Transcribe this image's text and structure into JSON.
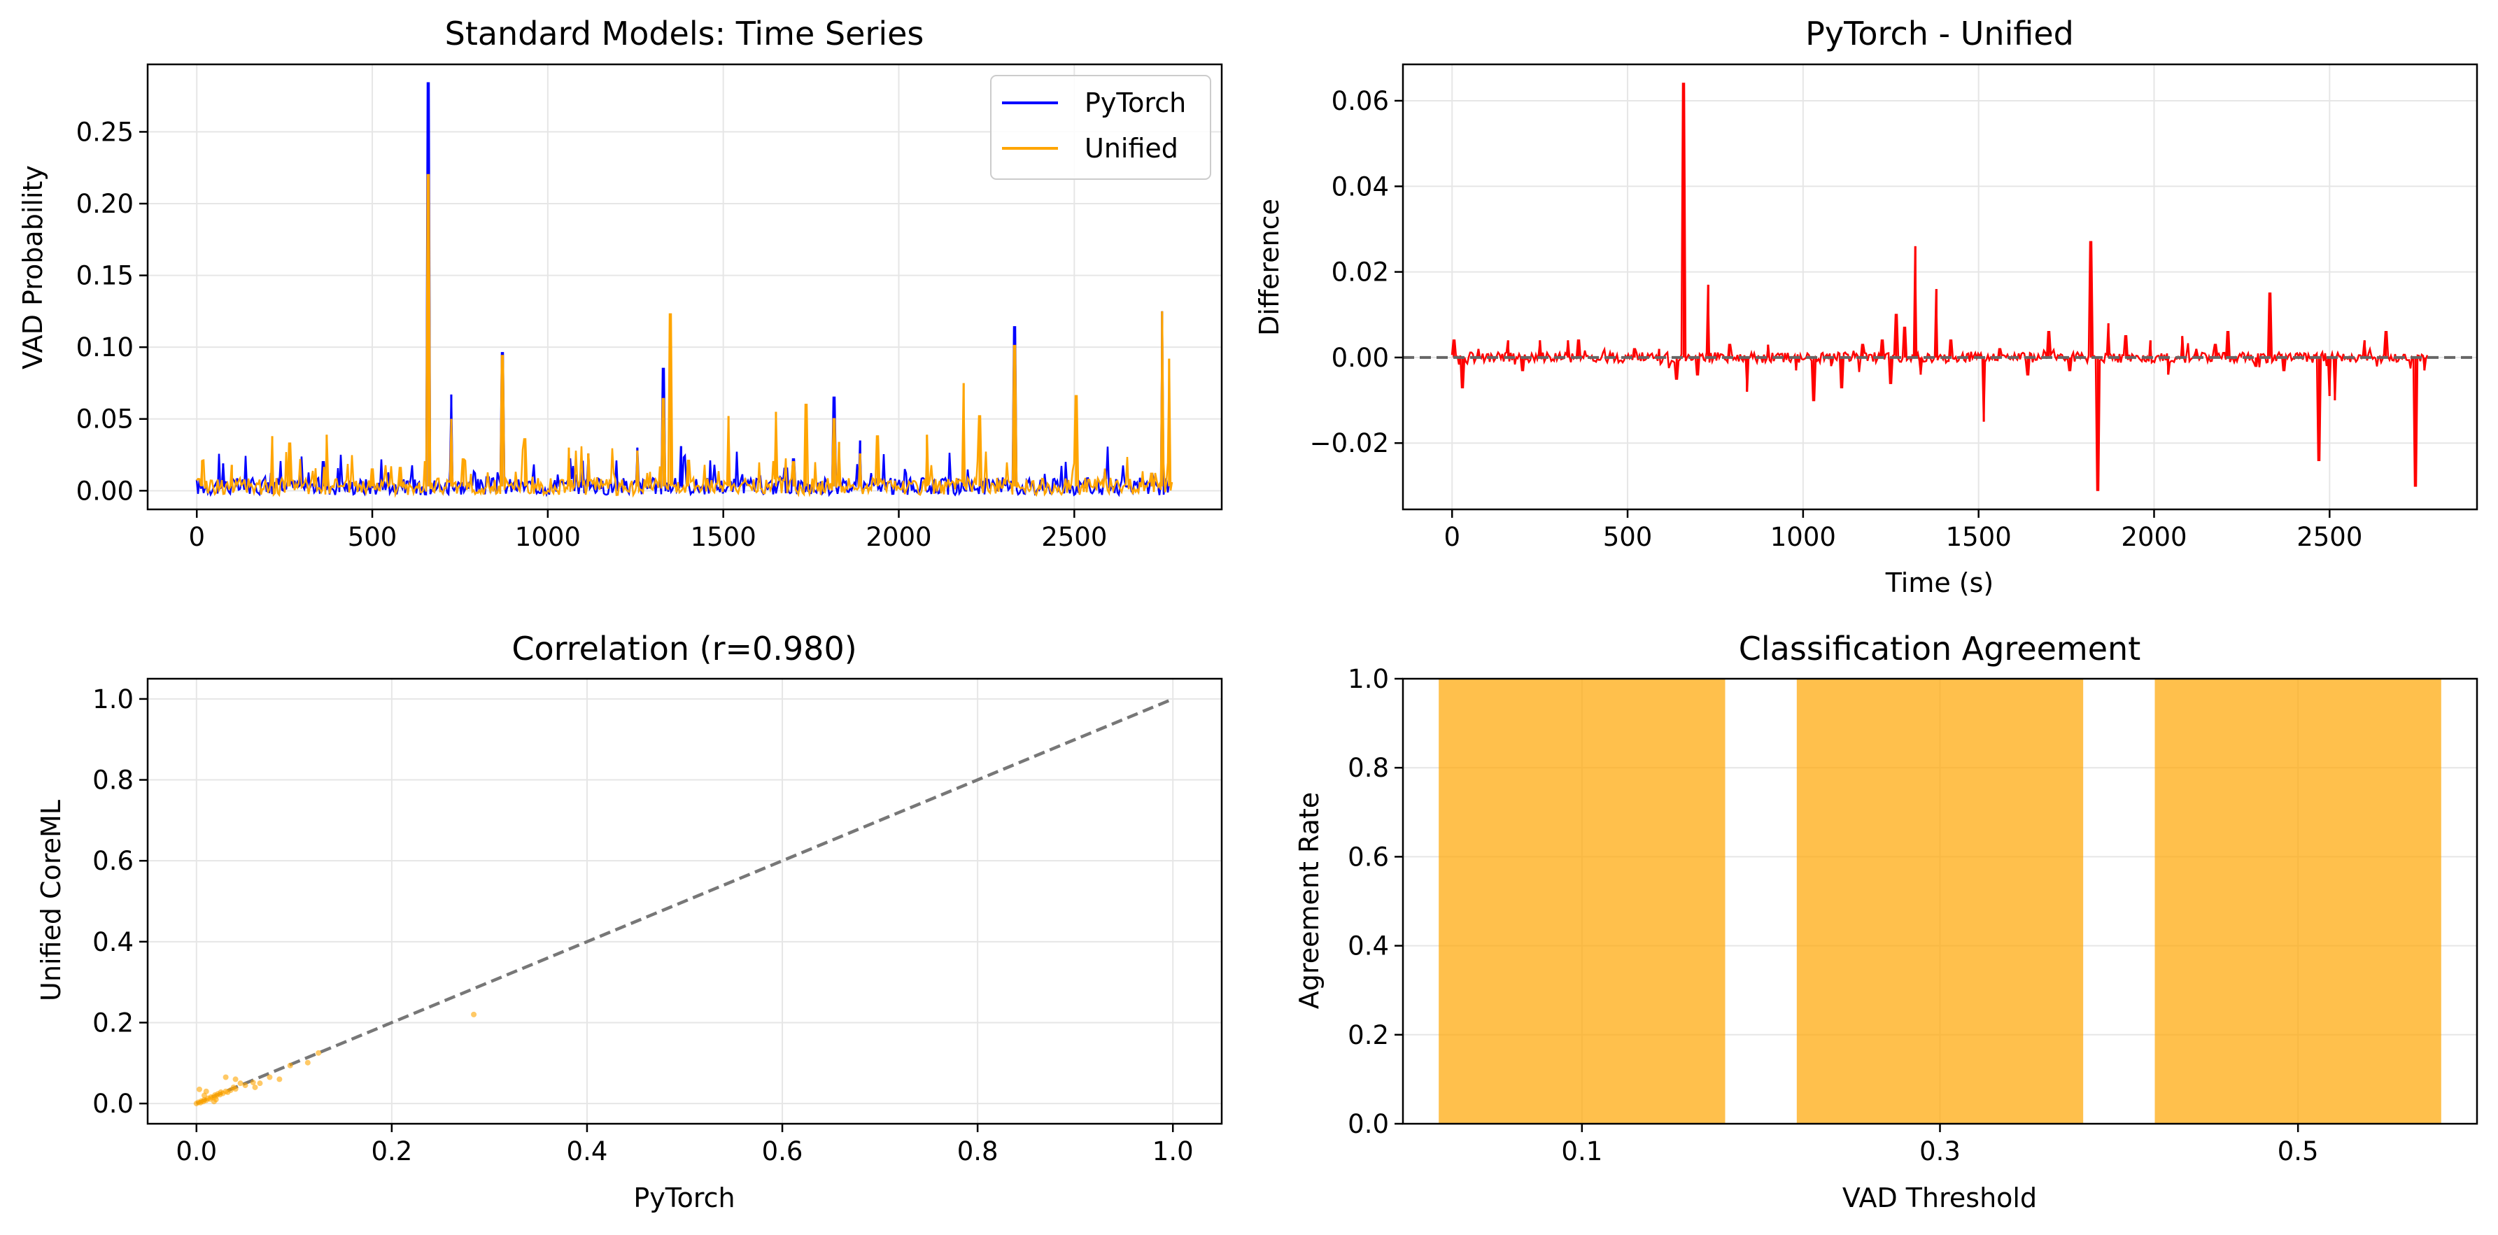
{
  "chart_data": [
    {
      "type": "line",
      "title": "Standard Models: Time Series",
      "xlabel": "",
      "ylabel": "VAD Probability",
      "xlim": [
        -140,
        2920
      ],
      "ylim": [
        -0.013,
        0.297
      ],
      "xticks": [
        0,
        500,
        1000,
        1500,
        2000,
        2500
      ],
      "yticks": [
        0.0,
        0.05,
        0.1,
        0.15,
        0.2,
        0.25
      ],
      "ytick_labels": [
        "0.00",
        "0.05",
        "0.10",
        "0.15",
        "0.20",
        "0.25"
      ],
      "grid": true,
      "legend": "top-right",
      "series": [
        {
          "name": "PyTorch",
          "color": "#0000ff",
          "spikes": [
            [
              75,
              0.019
            ],
            [
              360,
              0.02
            ],
            [
              660,
              0.284
            ],
            [
              725,
              0.067
            ],
            [
              870,
              0.096
            ],
            [
              1115,
              0.026
            ],
            [
              1255,
              0.03
            ],
            [
              1330,
              0.085
            ],
            [
              1380,
              0.031
            ],
            [
              1700,
              0.022
            ],
            [
              1815,
              0.065
            ],
            [
              1890,
              0.035
            ],
            [
              2330,
              0.114
            ],
            [
              2720,
              0.012
            ],
            [
              2750,
              0.125
            ]
          ]
        },
        {
          "name": "Unified",
          "color": "#ffa500",
          "spikes": [
            [
              15,
              0.021
            ],
            [
              100,
              0.018
            ],
            [
              215,
              0.038
            ],
            [
              265,
              0.033
            ],
            [
              370,
              0.039
            ],
            [
              500,
              0.015
            ],
            [
              580,
              0.016
            ],
            [
              660,
              0.22
            ],
            [
              725,
              0.05
            ],
            [
              760,
              0.022
            ],
            [
              870,
              0.094
            ],
            [
              935,
              0.036
            ],
            [
              1060,
              0.03
            ],
            [
              1115,
              0.026
            ],
            [
              1255,
              0.028
            ],
            [
              1330,
              0.064
            ],
            [
              1350,
              0.123
            ],
            [
              1400,
              0.021
            ],
            [
              1515,
              0.052
            ],
            [
              1650,
              0.055
            ],
            [
              1700,
              0.02
            ],
            [
              1735,
              0.06
            ],
            [
              1815,
              0.05
            ],
            [
              1830,
              0.034
            ],
            [
              1890,
              0.026
            ],
            [
              1940,
              0.038
            ],
            [
              2080,
              0.039
            ],
            [
              2185,
              0.075
            ],
            [
              2230,
              0.052
            ],
            [
              2330,
              0.101
            ],
            [
              2505,
              0.066
            ],
            [
              2720,
              0.012
            ],
            [
              2750,
              0.125
            ],
            [
              2770,
              0.092
            ]
          ]
        }
      ]
    },
    {
      "type": "line",
      "title": "PyTorch - Unified",
      "xlabel": "Time (s)",
      "ylabel": "Difference",
      "xlim": [
        -140,
        2920
      ],
      "ylim": [
        -0.0355,
        0.0685
      ],
      "xticks": [
        0,
        500,
        1000,
        1500,
        2000,
        2500
      ],
      "yticks": [
        -0.02,
        0.0,
        0.02,
        0.04,
        0.06
      ],
      "ytick_labels": [
        "−0.02",
        "0.00",
        "0.02",
        "0.04",
        "0.06"
      ],
      "grid": true,
      "zero_line": "dashed",
      "series": [
        {
          "name": "",
          "color": "#ff0000",
          "spikes": [
            [
              5,
              0.004
            ],
            [
              30,
              -0.007
            ],
            [
              75,
              0.002
            ],
            [
              160,
              0.004
            ],
            [
              200,
              -0.003
            ],
            [
              250,
              0.004
            ],
            [
              330,
              0.004
            ],
            [
              360,
              0.004
            ],
            [
              520,
              0.002
            ],
            [
              590,
              0.002
            ],
            [
              640,
              -0.005
            ],
            [
              660,
              0.064
            ],
            [
              700,
              -0.004
            ],
            [
              730,
              0.017
            ],
            [
              790,
              0.003
            ],
            [
              840,
              -0.008
            ],
            [
              900,
              0.003
            ],
            [
              980,
              -0.003
            ],
            [
              1030,
              -0.01
            ],
            [
              1080,
              -0.002
            ],
            [
              1110,
              -0.007
            ],
            [
              1170,
              0.003
            ],
            [
              1225,
              0.004
            ],
            [
              1250,
              -0.006
            ],
            [
              1265,
              0.01
            ],
            [
              1290,
              0.007
            ],
            [
              1320,
              0.026
            ],
            [
              1335,
              -0.004
            ],
            [
              1380,
              0.016
            ],
            [
              1420,
              0.004
            ],
            [
              1515,
              -0.015
            ],
            [
              1560,
              0.002
            ],
            [
              1640,
              -0.004
            ],
            [
              1700,
              0.006
            ],
            [
              1760,
              -0.003
            ],
            [
              1820,
              0.027
            ],
            [
              1840,
              -0.031
            ],
            [
              1870,
              0.008
            ],
            [
              1920,
              0.005
            ],
            [
              1990,
              0.004
            ],
            [
              2040,
              -0.004
            ],
            [
              2080,
              0.005
            ],
            [
              2120,
              0.002
            ],
            [
              2175,
              0.003
            ],
            [
              2210,
              0.006
            ],
            [
              2290,
              -0.002
            ],
            [
              2330,
              0.015
            ],
            [
              2370,
              -0.003
            ],
            [
              2470,
              -0.024
            ],
            [
              2500,
              -0.009
            ],
            [
              2515,
              -0.01
            ],
            [
              2600,
              0.004
            ],
            [
              2660,
              0.006
            ],
            [
              2745,
              -0.03
            ],
            [
              2770,
              -0.003
            ]
          ]
        }
      ]
    },
    {
      "type": "scatter",
      "title": "Correlation (r=0.980)",
      "xlabel": "PyTorch",
      "ylabel": "Unified CoreML",
      "xlim": [
        -0.05,
        1.05
      ],
      "ylim": [
        -0.05,
        1.05
      ],
      "xticks": [
        0.0,
        0.2,
        0.4,
        0.6,
        0.8,
        1.0
      ],
      "yticks": [
        0.0,
        0.2,
        0.4,
        0.6,
        0.8,
        1.0
      ],
      "xtick_labels": [
        "0.0",
        "0.2",
        "0.4",
        "0.6",
        "0.8",
        "1.0"
      ],
      "ytick_labels": [
        "0.0",
        "0.2",
        "0.4",
        "0.6",
        "0.8",
        "1.0"
      ],
      "grid": true,
      "reference_line": {
        "x": [
          0,
          1
        ],
        "y": [
          0,
          1
        ],
        "style": "dashed",
        "color": "#777777"
      },
      "color": "#ffa500",
      "points": [
        [
          0,
          0
        ],
        [
          0.002,
          0.003
        ],
        [
          0.004,
          0.002
        ],
        [
          0.005,
          0.006
        ],
        [
          0.007,
          0.005
        ],
        [
          0.008,
          0.009
        ],
        [
          0.01,
          0.008
        ],
        [
          0.012,
          0.013
        ],
        [
          0.014,
          0.011
        ],
        [
          0.015,
          0.016
        ],
        [
          0.017,
          0.015
        ],
        [
          0.019,
          0.021
        ],
        [
          0.02,
          0.018
        ],
        [
          0.022,
          0.024
        ],
        [
          0.024,
          0.022
        ],
        [
          0.025,
          0.028
        ],
        [
          0.027,
          0.025
        ],
        [
          0.03,
          0.03
        ],
        [
          0.032,
          0.028
        ],
        [
          0.035,
          0.033
        ],
        [
          0.038,
          0.04
        ],
        [
          0.04,
          0.036
        ],
        [
          0.045,
          0.05
        ],
        [
          0.05,
          0.045
        ],
        [
          0.058,
          0.052
        ],
        [
          0.065,
          0.05
        ],
        [
          0.075,
          0.065
        ],
        [
          0.085,
          0.06
        ],
        [
          0.096,
          0.094
        ],
        [
          0.114,
          0.101
        ],
        [
          0.125,
          0.125
        ],
        [
          0.284,
          0.22
        ],
        [
          0.003,
          0.035
        ],
        [
          0.01,
          0.03
        ],
        [
          0.02,
          0.01
        ],
        [
          0.03,
          0.065
        ],
        [
          0.008,
          0.02
        ],
        [
          0.018,
          0.005
        ],
        [
          0.04,
          0.06
        ],
        [
          0.06,
          0.04
        ]
      ]
    },
    {
      "type": "bar",
      "title": "Classification Agreement",
      "xlabel": "VAD Threshold",
      "ylabel": "Agreement Rate",
      "categories": [
        "0.1",
        "0.3",
        "0.5"
      ],
      "values": [
        1.0,
        1.0,
        1.0
      ],
      "ylim": [
        0.0,
        1.0
      ],
      "yticks": [
        0.0,
        0.2,
        0.4,
        0.6,
        0.8,
        1.0
      ],
      "ytick_labels": [
        "0.0",
        "0.2",
        "0.4",
        "0.6",
        "0.8",
        "1.0"
      ],
      "grid": true,
      "color": "#ffa500"
    }
  ]
}
